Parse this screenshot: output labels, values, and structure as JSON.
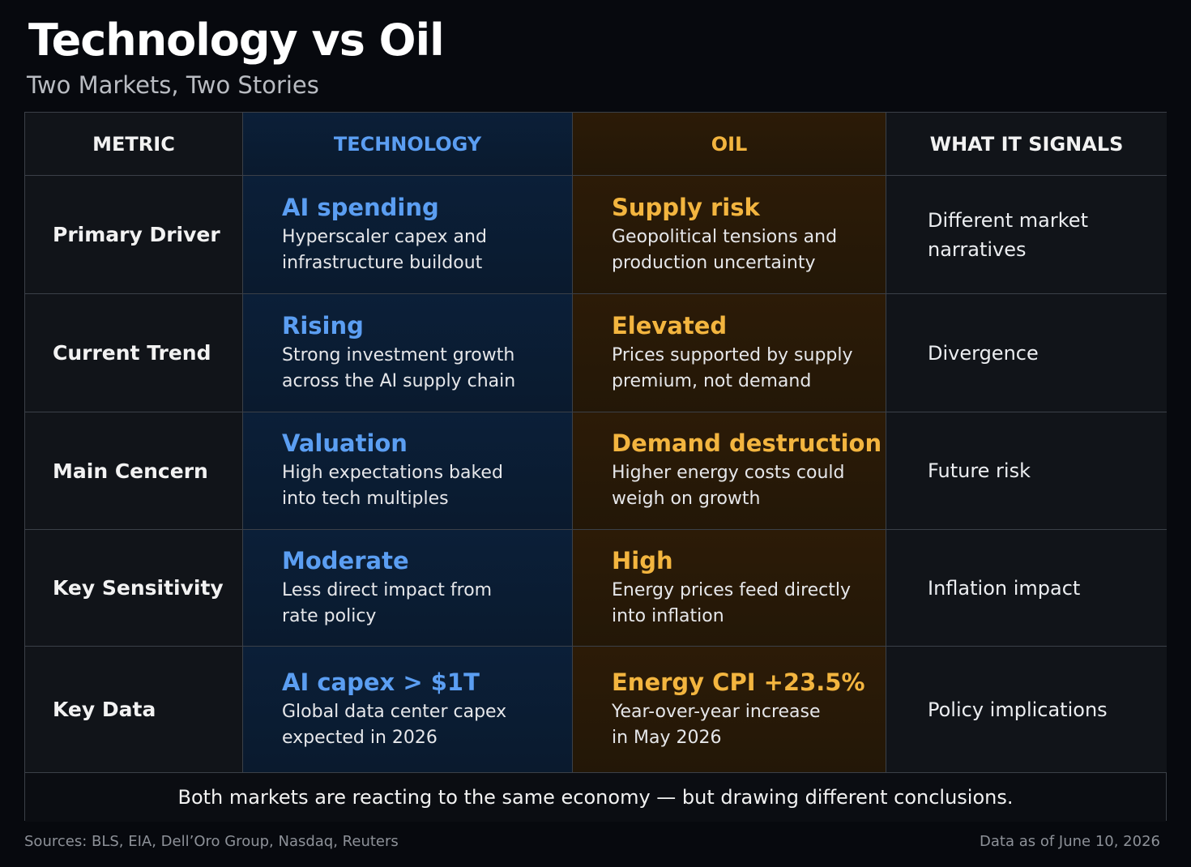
{
  "header": {
    "title": "Technology vs Oil",
    "subtitle": "Two Markets, Two Stories"
  },
  "table": {
    "columns": [
      "METRIC",
      "TECHNOLOGY",
      "OIL",
      "WHAT IT SIGNALS"
    ],
    "rows": [
      {
        "metric": "Primary Driver",
        "technology": {
          "headline": "AI spending",
          "detail": [
            "Hyperscaler capex and",
            "infrastructure buildout"
          ]
        },
        "oil": {
          "headline": "Supply risk",
          "detail": [
            "Geopolitical tensions and",
            "production uncertainty"
          ]
        },
        "signal": [
          "Different market",
          "narratives"
        ]
      },
      {
        "metric": "Current Trend",
        "technology": {
          "headline": "Rising",
          "detail": [
            "Strong investment growth",
            "across the AI supply chain"
          ]
        },
        "oil": {
          "headline": "Elevated",
          "detail": [
            "Prices supported by supply",
            "premium, not demand"
          ]
        },
        "signal": [
          "Divergence"
        ]
      },
      {
        "metric": "Main Cencern",
        "technology": {
          "headline": "Valuation",
          "detail": [
            "High expectations baked",
            "into tech multiples"
          ]
        },
        "oil": {
          "headline": "Demand destruction",
          "detail": [
            "Higher energy costs could",
            "weigh on growth"
          ]
        },
        "signal": [
          "Future risk"
        ]
      },
      {
        "metric": "Key Sensitivity",
        "technology": {
          "headline": "Moderate",
          "detail": [
            "Less direct impact from",
            "rate policy"
          ]
        },
        "oil": {
          "headline": "High",
          "detail": [
            "Energy prices feed directly",
            "into inflation"
          ]
        },
        "signal": [
          "Inflation impact"
        ]
      },
      {
        "metric": "Key Data",
        "technology": {
          "headline": "AI capex > $1T",
          "detail": [
            "Global data center capex",
            "expected in 2026"
          ]
        },
        "oil": {
          "headline": "Energy CPI +23.5%",
          "detail": [
            "Year-over-year increase",
            "in May 2026"
          ]
        },
        "signal": [
          "Policy implications"
        ]
      }
    ],
    "note": "Both markets are reacting to the same economy — but drawing different conclusions."
  },
  "footer": {
    "sources": "Sources: BLS, EIA, Dell’Oro Group, Nasdaq, Reuters",
    "date": "Data as of June 10, 2026"
  }
}
